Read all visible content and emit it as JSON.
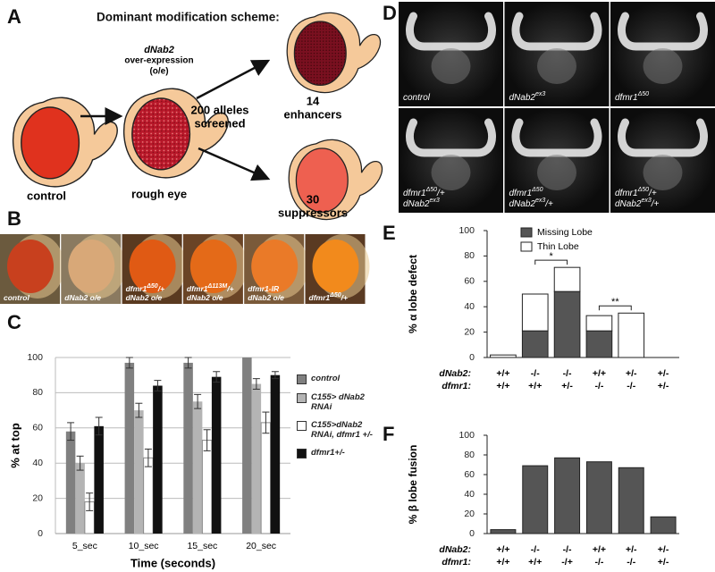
{
  "figure": {
    "panel_labels": [
      "A",
      "B",
      "C",
      "D",
      "E",
      "F"
    ],
    "scheme": {
      "title": "Dominant modification scheme:",
      "overexpression": [
        "dNab2",
        "over-expression",
        "(o/e)"
      ],
      "screen": [
        "200 alleles",
        "screened"
      ],
      "control": "control",
      "rough_eye": "rough eye",
      "enhancers": [
        "14",
        "enhancers"
      ],
      "suppressors": [
        "30",
        "suppressors"
      ]
    },
    "eye_photos": [
      [
        [
          "control"
        ]
      ],
      [
        [
          "dNab2 o/e"
        ]
      ],
      [
        [
          "dfmr1",
          "Δ50",
          "/+"
        ],
        [
          "dNab2 o/e"
        ]
      ],
      [
        [
          "dfmr1",
          "Δ113M",
          "/+"
        ],
        [
          "dNab2 o/e"
        ]
      ],
      [
        [
          "dfmr1-IR"
        ],
        [
          "dNab2 o/e"
        ]
      ],
      [
        [
          "dfmr1",
          "Δ50",
          "/+"
        ]
      ]
    ],
    "brain_images": [
      [
        [
          "control"
        ]
      ],
      [
        [
          "dNab2",
          "ex3"
        ]
      ],
      [
        [
          "dfmr1",
          "Δ50"
        ]
      ],
      [
        [
          "dfmr1",
          "Δ50",
          "/+"
        ],
        [
          "dNab2",
          "ex3"
        ]
      ],
      [
        [
          "dfmr1",
          "Δ50"
        ],
        [
          "dNab2",
          "ex3",
          "/+"
        ]
      ],
      [
        [
          "dfmr1",
          "Δ50",
          "/+"
        ],
        [
          "dNab2",
          "ex3",
          "/+"
        ]
      ]
    ]
  },
  "chart_data": [
    {
      "type": "grouped_bar",
      "ylabel": "% at top",
      "xlabel": "Time (seconds)",
      "categories": [
        "5_sec",
        "10_sec",
        "15_sec",
        "20_sec"
      ],
      "ylim": [
        0,
        100
      ],
      "yticks": [
        0,
        20,
        40,
        60,
        80,
        100
      ],
      "grid": true,
      "series": [
        {
          "name": "control",
          "color": "#808080",
          "values": [
            58,
            97,
            97,
            100
          ],
          "errors": [
            5,
            3,
            3,
            null
          ]
        },
        {
          "name": "C155> dNab2 RNAi",
          "color": "#b4b4b4",
          "values": [
            40,
            70,
            75,
            85
          ],
          "errors": [
            4,
            4,
            4,
            3
          ]
        },
        {
          "name": "C155>dNab2 RNAi, dfmr1 +/-",
          "color": "#ffffff",
          "values": [
            18,
            43,
            53,
            63
          ],
          "errors": [
            5,
            5,
            6,
            6
          ]
        },
        {
          "name": "dfmr1+/-",
          "color": "#111111",
          "values": [
            61,
            84,
            89,
            90
          ],
          "errors": [
            5,
            3,
            3,
            2
          ]
        }
      ]
    },
    {
      "type": "stacked_bar",
      "ylabel": "% α lobe defect",
      "ylim": [
        0,
        100
      ],
      "yticks": [
        0,
        20,
        40,
        60,
        80,
        100
      ],
      "grid": false,
      "category_rows": [
        {
          "label": "dNab2:",
          "values": [
            "+/+",
            "-/-",
            "-/-",
            "+/+",
            "+/-",
            "+/-"
          ]
        },
        {
          "label": "dfmr1:",
          "values": [
            "+/+",
            "+/+",
            "+/-",
            "-/-",
            "-/-",
            "+/-"
          ]
        }
      ],
      "series": [
        {
          "name": "Missing Lobe",
          "color": "#555555",
          "values": [
            0,
            21,
            52,
            21,
            0,
            0
          ]
        },
        {
          "name": "Thin Lobe",
          "color": "#ffffff",
          "values": [
            2,
            29,
            19,
            12,
            35,
            0
          ]
        }
      ],
      "annotations": [
        {
          "text": "*",
          "between": [
            1,
            2
          ]
        },
        {
          "text": "**",
          "between": [
            3,
            4
          ]
        }
      ]
    },
    {
      "type": "bar",
      "ylabel": "% β lobe fusion",
      "ylim": [
        0,
        100
      ],
      "yticks": [
        0,
        20,
        40,
        60,
        80,
        100
      ],
      "grid": false,
      "color": "#555555",
      "category_rows": [
        {
          "label": "dNab2:",
          "values": [
            "+/+",
            "-/-",
            "-/-",
            "+/+",
            "+/-",
            "+/-"
          ]
        },
        {
          "label": "dfmr1:",
          "values": [
            "+/+",
            "+/+",
            "-/+",
            "-/-",
            "-/-",
            "+/-"
          ]
        }
      ],
      "values": [
        4,
        69,
        77,
        73,
        67,
        17
      ]
    }
  ]
}
